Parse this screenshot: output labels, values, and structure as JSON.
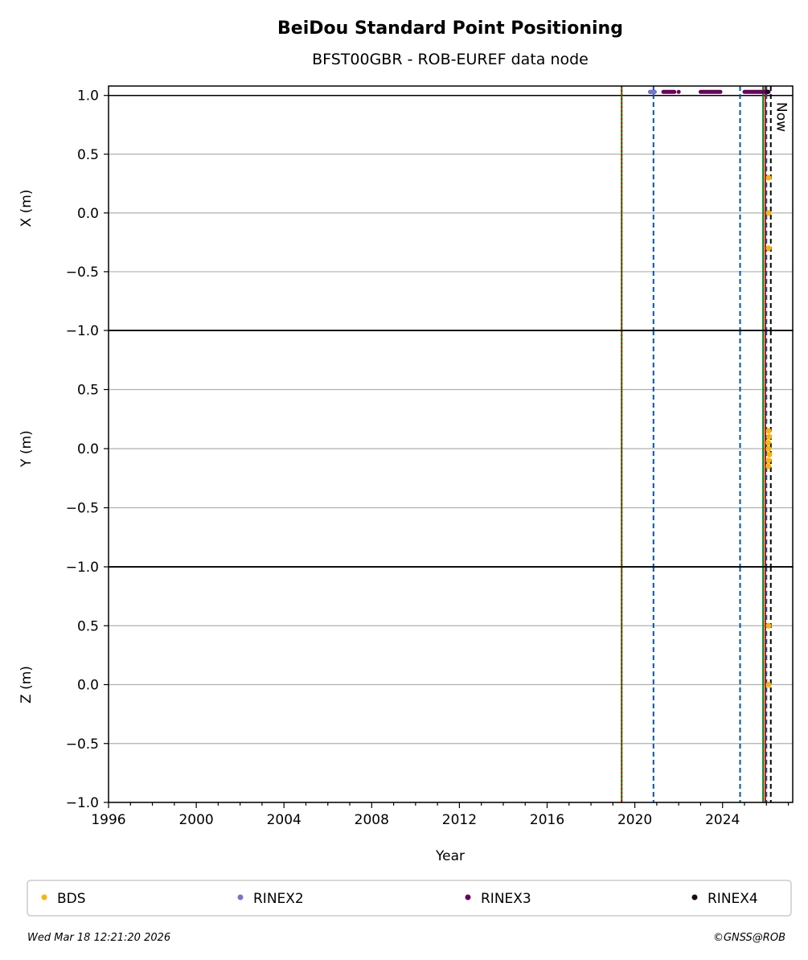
{
  "chart_data": {
    "type": "scatter",
    "title": "BeiDou Standard Point Positioning",
    "subtitle": "BFST00GBR - ROB-EUREF data node",
    "xlabel": "Year",
    "x_ticks": [
      "1996",
      "2000",
      "2004",
      "2008",
      "2012",
      "2016",
      "2020",
      "2024"
    ],
    "xlim": [
      1996,
      2027.2
    ],
    "panels": [
      {
        "ylabel": "X (m)",
        "ylim": [
          -1.0,
          1.08
        ],
        "y_ticks": [
          "1.0",
          "0.5",
          "0.0",
          "−0.5",
          "−1.0"
        ],
        "bds_points": [
          [
            2026.1,
            0.3
          ],
          [
            2026.1,
            0.0
          ],
          [
            2026.1,
            -0.3
          ]
        ]
      },
      {
        "ylabel": "Y (m)",
        "ylim": [
          -1.0,
          1.0
        ],
        "y_ticks": [
          "0.5",
          "0.0",
          "−0.5",
          "−1.0"
        ],
        "bds_points": [
          [
            2026.1,
            0.15
          ],
          [
            2026.12,
            0.1
          ],
          [
            2026.08,
            0.05
          ],
          [
            2026.1,
            0.0
          ],
          [
            2026.14,
            -0.05
          ],
          [
            2026.1,
            -0.1
          ],
          [
            2026.09,
            -0.15
          ]
        ]
      },
      {
        "ylabel": "Z (m)",
        "ylim": [
          -1.0,
          1.0
        ],
        "y_ticks": [
          "0.5",
          "0.0",
          "−0.5",
          "−1.0"
        ],
        "bds_points": [
          [
            2026.1,
            0.5
          ],
          [
            2026.1,
            0.0
          ]
        ]
      }
    ],
    "availability_strip": {
      "y": 1.03,
      "rinex2": [
        2020.7,
        2020.8,
        2020.9
      ],
      "rinex3_ranges": [
        [
          2021.3,
          2021.8
        ],
        [
          2023.0,
          2023.9
        ],
        [
          2025.0,
          2026.1
        ]
      ],
      "rinex3_points": [
        2022.0
      ],
      "rinex4": [
        2026.05
      ]
    },
    "event_lines": [
      {
        "x": 2019.4,
        "color": "#008000",
        "style": "solid"
      },
      {
        "x": 2019.4,
        "color": "#e00000",
        "style": "dotted"
      },
      {
        "x": 2020.85,
        "color": "#0055aa",
        "style": "dashed"
      },
      {
        "x": 2024.8,
        "color": "#0055aa",
        "style": "dashed"
      },
      {
        "x": 2025.85,
        "color": "#008000",
        "style": "solid"
      },
      {
        "x": 2025.95,
        "color": "#e00000",
        "style": "solid"
      },
      {
        "x": 2026.0,
        "color": "#0055aa",
        "style": "dashed"
      },
      {
        "x": 2026.2,
        "color": "#000000",
        "style": "dashed"
      }
    ],
    "now_label": "Now",
    "legend": [
      {
        "label": "BDS",
        "color": "#ffb300"
      },
      {
        "label": "RINEX2",
        "color": "#7b72c8"
      },
      {
        "label": "RINEX3",
        "color": "#6a005e"
      },
      {
        "label": "RINEX4",
        "color": "#1a0a14"
      }
    ],
    "legend_placement": "bottom",
    "grid": "horizontal",
    "footer_left": "Wed Mar 18 12:21:20 2026",
    "footer_right": "©GNSS@ROB"
  }
}
